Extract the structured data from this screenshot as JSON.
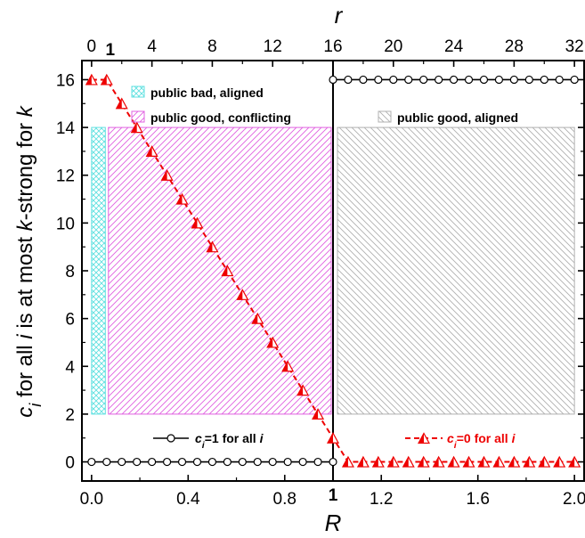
{
  "chart_data": {
    "type": "line",
    "x_bottom": {
      "label": "R",
      "range": [
        -0.04,
        2.04
      ],
      "ticks": [
        "0.0",
        "0.4",
        "0.8",
        "1.2",
        "1.6",
        "2.0"
      ],
      "tick_values": [
        0.0,
        0.4,
        0.8,
        1.2,
        1.6,
        2.0
      ],
      "extra_tick": {
        "value": 1.0,
        "label": "1"
      }
    },
    "x_top": {
      "label": "r",
      "ticks": [
        "0",
        "4",
        "8",
        "12",
        "16",
        "20",
        "24",
        "28",
        "32"
      ],
      "tick_values": [
        0,
        4,
        8,
        12,
        16,
        20,
        24,
        28,
        32
      ],
      "extra_tick": {
        "value": 1,
        "label": "1"
      }
    },
    "y": {
      "label_parts": [
        {
          "t": "c",
          "italic": true
        },
        {
          "t": "i",
          "italic": true,
          "sub": true
        },
        {
          "t": " for all ",
          "italic": false
        },
        {
          "t": "i",
          "italic": true
        },
        {
          "t": " is at most ",
          "italic": false
        },
        {
          "t": "k",
          "italic": true
        },
        {
          "t": "-strong for ",
          "italic": false
        },
        {
          "t": "k",
          "italic": true
        }
      ],
      "range": [
        -0.8,
        16.8
      ],
      "ticks": [
        "0",
        "2",
        "4",
        "6",
        "8",
        "10",
        "12",
        "14",
        "16"
      ],
      "tick_values": [
        0,
        2,
        4,
        6,
        8,
        10,
        12,
        14,
        16
      ]
    },
    "regions": [
      {
        "name": "public bad, aligned",
        "x0": 0.0,
        "x1": 0.0625,
        "y0": 2,
        "y1": 14,
        "color": "#5fe0e0",
        "pattern": "crosshatch"
      },
      {
        "name": "public good, conflicting",
        "x0": 0.0625,
        "x1": 1.0,
        "y0": 2,
        "y1": 14,
        "color": "#e060e0",
        "pattern": "hatch"
      },
      {
        "name": "public good, aligned",
        "x0": 1.0,
        "x1": 2.0,
        "y0": 2,
        "y1": 14,
        "color": "#b0b0b0",
        "pattern": "hatch"
      }
    ],
    "vertical_line": {
      "x": 1.0
    },
    "series": [
      {
        "name_parts": [
          {
            "t": "c",
            "italic": true
          },
          {
            "t": "i",
            "italic": true,
            "sub": true
          },
          {
            "t": "=1 for all ",
            "italic": false
          },
          {
            "t": "i",
            "italic": true
          }
        ],
        "color": "#000000",
        "marker": "circle",
        "line": "solid",
        "x": [
          0.0,
          0.0625,
          0.125,
          0.1875,
          0.25,
          0.3125,
          0.375,
          0.4375,
          0.5,
          0.5625,
          0.625,
          0.6875,
          0.75,
          0.8125,
          0.875,
          0.9375,
          1.0,
          1.0,
          1.0625,
          1.125,
          1.1875,
          1.25,
          1.3125,
          1.375,
          1.4375,
          1.5,
          1.5625,
          1.625,
          1.6875,
          1.75,
          1.8125,
          1.875,
          1.9375,
          2.0
        ],
        "y": [
          0,
          0,
          0,
          0,
          0,
          0,
          0,
          0,
          0,
          0,
          0,
          0,
          0,
          0,
          0,
          0,
          0,
          16,
          16,
          16,
          16,
          16,
          16,
          16,
          16,
          16,
          16,
          16,
          16,
          16,
          16,
          16,
          16,
          16
        ]
      },
      {
        "name_parts": [
          {
            "t": "c",
            "italic": true
          },
          {
            "t": "i",
            "italic": true,
            "sub": true
          },
          {
            "t": "=0 for all ",
            "italic": false
          },
          {
            "t": "i",
            "italic": true
          }
        ],
        "color": "#ee0000",
        "marker": "triangle",
        "line": "dashed",
        "x": [
          0.0,
          0.0625,
          0.125,
          0.1875,
          0.25,
          0.3125,
          0.375,
          0.4375,
          0.5,
          0.5625,
          0.625,
          0.6875,
          0.75,
          0.8125,
          0.875,
          0.9375,
          1.0,
          1.0625,
          1.125,
          1.1875,
          1.25,
          1.3125,
          1.375,
          1.4375,
          1.5,
          1.5625,
          1.625,
          1.6875,
          1.75,
          1.8125,
          1.875,
          1.9375,
          2.0
        ],
        "y": [
          16,
          16,
          15,
          14,
          13,
          12,
          11,
          10,
          9,
          8,
          7,
          6,
          5,
          4,
          3,
          2,
          1,
          0,
          0,
          0,
          0,
          0,
          0,
          0,
          0,
          0,
          0,
          0,
          0,
          0,
          0,
          0,
          0
        ]
      }
    ]
  }
}
